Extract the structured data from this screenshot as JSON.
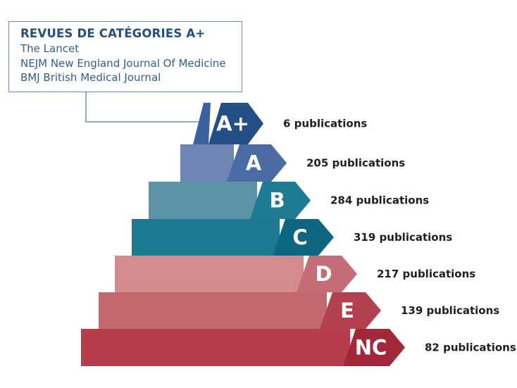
{
  "legend": {
    "title": "REVUES DE CATÉGORIES A+",
    "journals": [
      "The Lancet",
      "NEJM New England Journal Of Medicine",
      "BMJ British Medical Journal"
    ]
  },
  "levels": [
    {
      "label": "A+",
      "count_text": "6 publications",
      "count": 6,
      "band_color": "#ffffff",
      "arrow_color": "#234f86"
    },
    {
      "label": "A",
      "count_text": "205 publications",
      "count": 205,
      "band_color": "#6e85b3",
      "arrow_color": "#4a6ba3"
    },
    {
      "label": "B",
      "count_text": "284 publications",
      "count": 284,
      "band_color": "#5c93a6",
      "arrow_color": "#1f7b92"
    },
    {
      "label": "C",
      "count_text": "319 publications",
      "count": 319,
      "band_color": "#1d7a91",
      "arrow_color": "#0e6680"
    },
    {
      "label": "D",
      "count_text": "217 publications",
      "count": 217,
      "band_color": "#d58a90",
      "arrow_color": "#c46d76"
    },
    {
      "label": "E",
      "count_text": "139 publications",
      "count": 139,
      "band_color": "#c46870",
      "arrow_color": "#b3404f"
    },
    {
      "label": "NC",
      "count_text": "82 publications",
      "count": 82,
      "band_color": "#b73d4c",
      "arrow_color": "#a3283a"
    }
  ]
}
